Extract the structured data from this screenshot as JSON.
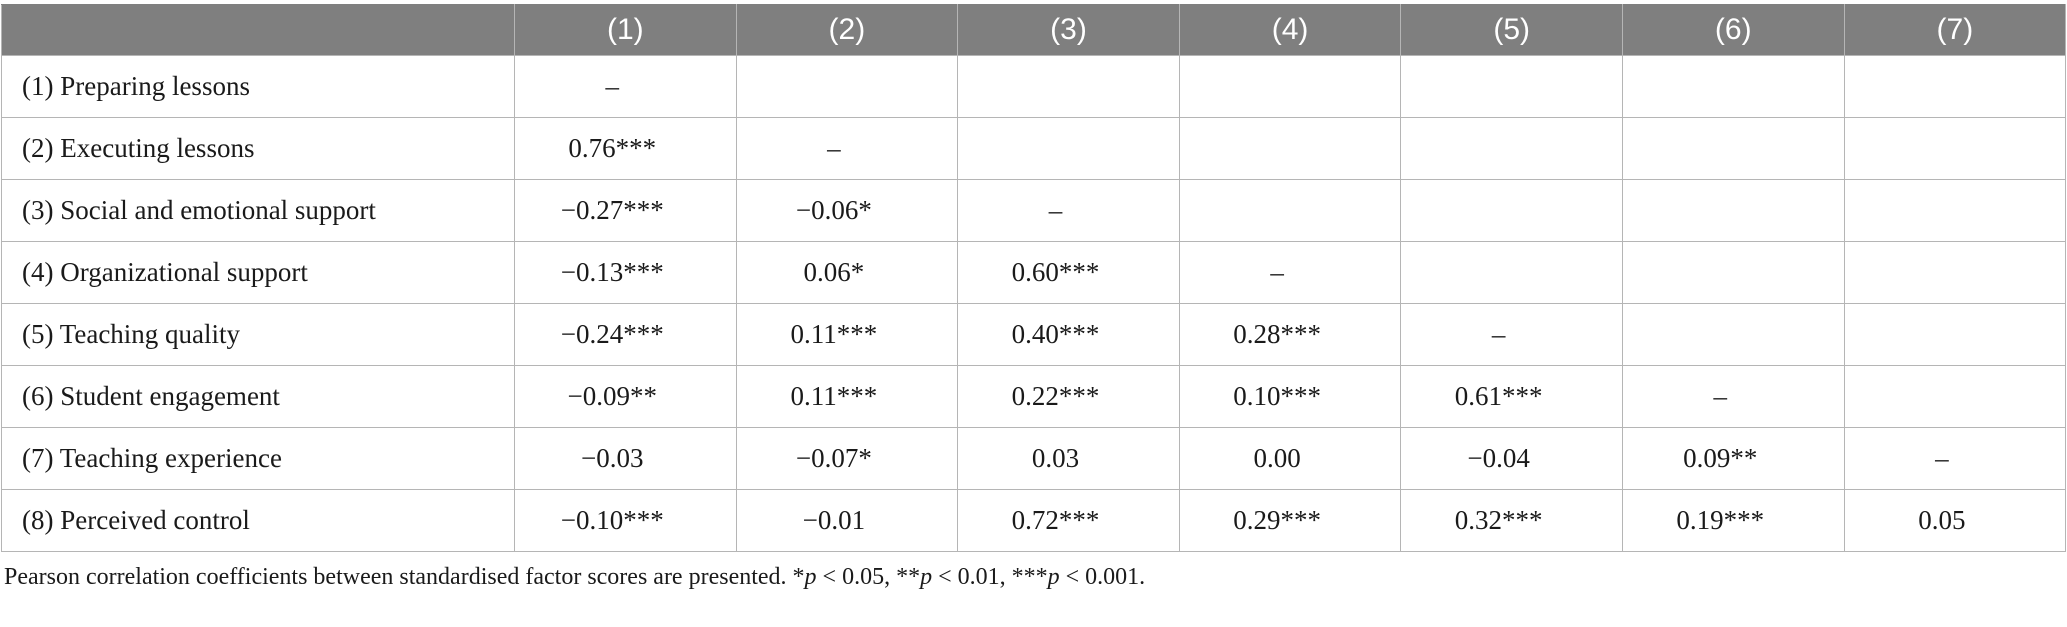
{
  "table": {
    "columns": [
      "(1)",
      "(2)",
      "(3)",
      "(4)",
      "(5)",
      "(6)",
      "(7)"
    ],
    "rows": [
      {
        "label": "(1) Preparing lessons",
        "cells": [
          "–",
          "",
          "",
          "",
          "",
          "",
          ""
        ]
      },
      {
        "label": "(2) Executing lessons",
        "cells": [
          "0.76***",
          "–",
          "",
          "",
          "",
          "",
          ""
        ]
      },
      {
        "label": "(3) Social and emotional support",
        "cells": [
          "−0.27***",
          "−0.06*",
          "–",
          "",
          "",
          "",
          ""
        ]
      },
      {
        "label": "(4) Organizational support",
        "cells": [
          "−0.13***",
          "0.06*",
          "0.60***",
          "–",
          "",
          "",
          ""
        ]
      },
      {
        "label": "(5) Teaching quality",
        "cells": [
          "−0.24***",
          "0.11***",
          "0.40***",
          "0.28***",
          "–",
          "",
          ""
        ]
      },
      {
        "label": "(6) Student engagement",
        "cells": [
          "−0.09**",
          "0.11***",
          "0.22***",
          "0.10***",
          "0.61***",
          "–",
          ""
        ]
      },
      {
        "label": "(7) Teaching experience",
        "cells": [
          "−0.03",
          "−0.07*",
          "0.03",
          "0.00",
          "−0.04",
          "0.09**",
          "–"
        ]
      },
      {
        "label": "(8) Perceived control",
        "cells": [
          "−0.10***",
          "−0.01",
          "0.72***",
          "0.29***",
          "0.32***",
          "0.19***",
          "0.05"
        ]
      }
    ]
  },
  "note": {
    "text": "Pearson correlation coefficients between standardised factor scores are presented. ",
    "sig1_stars": "*",
    "sig1_cond": " < 0.05, ",
    "sig2_stars": "**",
    "sig2_cond": " < 0.01, ",
    "sig3_stars": "***",
    "sig3_cond": " < 0.001.",
    "p_symbol": "p"
  }
}
